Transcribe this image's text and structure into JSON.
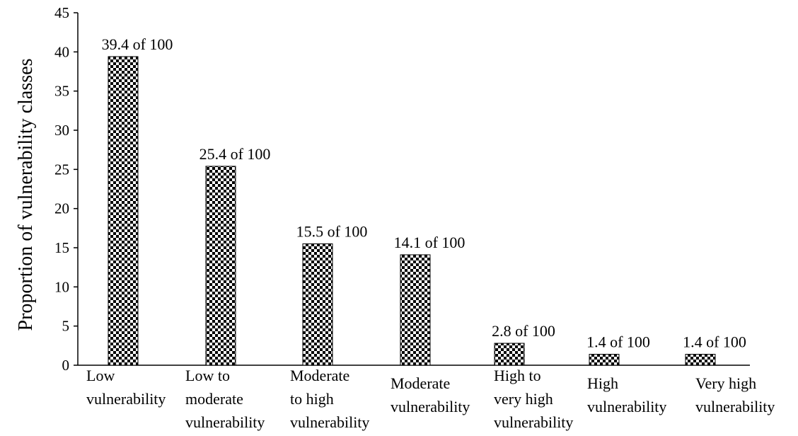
{
  "chart_data": {
    "type": "bar",
    "title": "",
    "xlabel": "",
    "ylabel": "Proportion of vulnerability classes",
    "ylim": [
      0,
      45
    ],
    "yticks": [
      "0",
      "5",
      "10",
      "15",
      "20",
      "25",
      "30",
      "35",
      "40",
      "45"
    ],
    "grid": false,
    "legend": "none",
    "bar_fill": "checkerboard",
    "bar_color": "#000000",
    "categories": [
      [
        "Low",
        "vulnerability"
      ],
      [
        "Low to",
        "moderate",
        "vulnerability"
      ],
      [
        "Moderate",
        "to high",
        "vulnerability"
      ],
      [
        "Moderate",
        "vulnerability"
      ],
      [
        "High to",
        "very high",
        "vulnerability"
      ],
      [
        "High",
        "vulnerability"
      ],
      [
        "Very high",
        "vulnerability"
      ]
    ],
    "values": [
      39.4,
      25.4,
      15.5,
      14.1,
      2.8,
      1.4,
      1.4
    ],
    "data_labels": [
      "39.4 of 100",
      "25.4 of 100",
      "15.5 of 100",
      "14.1 of 100",
      "2.8 of 100",
      "1.4 of 100",
      "1.4 of 100"
    ]
  }
}
